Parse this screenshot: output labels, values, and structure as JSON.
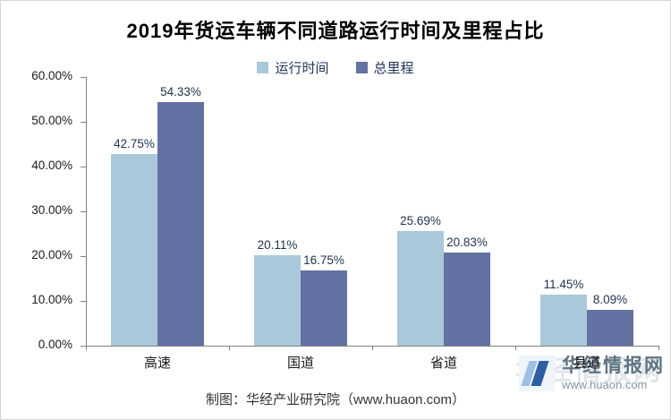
{
  "title": "2019年货运车辆不同道路运行时间及里程占比",
  "chart_data": {
    "type": "bar",
    "title": "2019年货运车辆不同道路运行时间及里程占比",
    "categories": [
      "高速",
      "国道",
      "省道",
      "县道"
    ],
    "series": [
      {
        "name": "运行时间",
        "color": "#a9c9db",
        "values": [
          42.75,
          20.11,
          25.69,
          11.45
        ]
      },
      {
        "name": "总里程",
        "color": "#6372a3",
        "values": [
          54.33,
          16.75,
          20.83,
          8.09
        ]
      }
    ],
    "ylim": [
      0,
      60
    ],
    "ytick_step": 10,
    "ytick_labels": [
      "0.00%",
      "10.00%",
      "20.00%",
      "30.00%",
      "40.00%",
      "50.00%",
      "60.00%"
    ],
    "grid": false,
    "legend_position": "top",
    "value_format": "0.00%",
    "xlabel": "",
    "ylabel": ""
  },
  "footer": {
    "credit": "制图：华经产业研究院（www.huaon.com）"
  },
  "watermark": {
    "name": "华经情报网",
    "url": "www.huaon.com"
  }
}
